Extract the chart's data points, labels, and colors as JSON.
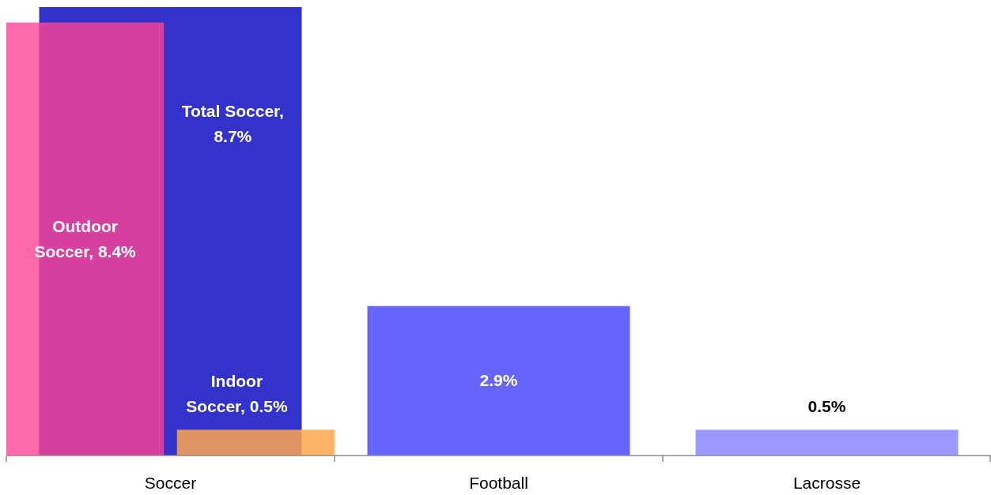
{
  "chart_data": {
    "type": "bar",
    "categories": [
      "Soccer",
      "Football",
      "Lacrosse"
    ],
    "series": [
      {
        "color": "#3333cc",
        "values": [
          8.7,
          null,
          null
        ],
        "value_labels": [
          "Total Soccer, 8.7%",
          null,
          null
        ]
      },
      {
        "color": "#ff4493",
        "values": [
          8.4,
          null,
          null
        ],
        "value_labels": [
          "Outdoor Soccer, 8.4%",
          null,
          null
        ]
      },
      {
        "color": "#ffa64d",
        "values": [
          0.5,
          null,
          null
        ],
        "value_labels": [
          "Indoor Soccer, 0.5%",
          null,
          null
        ]
      },
      {
        "color": "#6666ff",
        "values": [
          null,
          2.9,
          null
        ],
        "value_labels": [
          null,
          "2.9%",
          null
        ]
      },
      {
        "color": "#9999ff",
        "values": [
          null,
          null,
          0.5
        ],
        "value_labels": [
          null,
          null,
          "0.5%"
        ]
      }
    ]
  }
}
